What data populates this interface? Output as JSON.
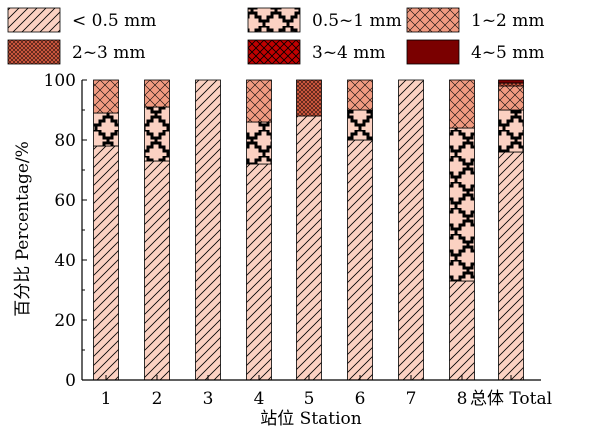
{
  "chart_data": {
    "type": "bar",
    "stacked": true,
    "title": "",
    "xlabel": "站位 Station",
    "ylabel": "百分比 Percentage/%",
    "ylim": [
      0,
      100
    ],
    "yticks": [
      "0",
      "20",
      "40",
      "60",
      "80",
      "100"
    ],
    "categories": [
      "1",
      "2",
      "3",
      "4",
      "5",
      "6",
      "7",
      "8",
      "总体 Total"
    ],
    "grid": false,
    "legend_position": "top",
    "series": [
      {
        "name": "< 0.5 mm",
        "pattern": "diagonal-hatch",
        "color": "#fbd1c2",
        "values": [
          78,
          73,
          100,
          72,
          88,
          80,
          100,
          33,
          76
        ]
      },
      {
        "name": "0.5~1 mm",
        "pattern": "zigzag",
        "color": "#fbd1c2",
        "values": [
          11,
          18,
          0,
          14,
          0,
          10,
          0,
          51,
          14
        ]
      },
      {
        "name": "1~2 mm",
        "pattern": "crosshatch",
        "color": "#f09a80",
        "values": [
          11,
          9,
          0,
          14,
          0,
          10,
          0,
          16,
          8
        ]
      },
      {
        "name": "2~3 mm",
        "pattern": "fine-crosshatch",
        "color": "#c8553c",
        "values": [
          0,
          0,
          0,
          0,
          12,
          0,
          0,
          0,
          1
        ]
      },
      {
        "name": "3~4 mm",
        "pattern": "crosshatch",
        "color": "#c00000",
        "values": [
          0,
          0,
          0,
          0,
          0,
          0,
          0,
          0,
          0
        ]
      },
      {
        "name": "4~5 mm",
        "pattern": "solid",
        "color": "#7a0000",
        "values": [
          0,
          0,
          0,
          0,
          0,
          0,
          0,
          0,
          1
        ]
      }
    ]
  }
}
